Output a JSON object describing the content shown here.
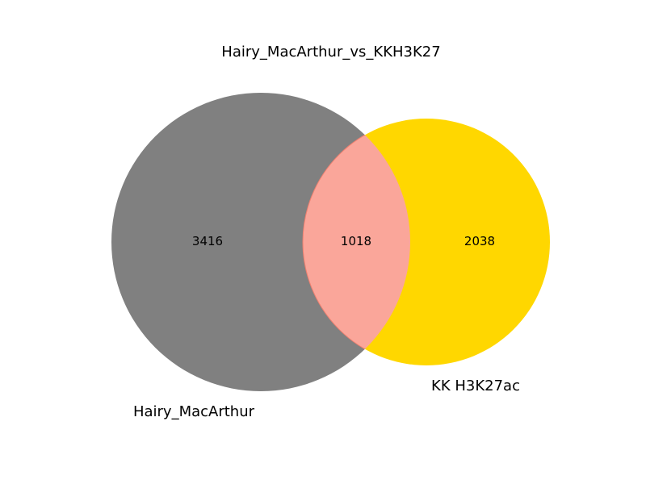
{
  "title": "Hairy_MacArthur_vs_KKH3K27",
  "sets": {
    "a": {
      "label": "Hairy_MacArthur",
      "only_count": "3416",
      "color": "#808080"
    },
    "b": {
      "label": "KK H3K27ac",
      "only_count": "2038",
      "color": "#FFD700"
    }
  },
  "intersection": {
    "count": "1018",
    "color": "#FAA69A",
    "edge_color": "#F08070"
  }
}
